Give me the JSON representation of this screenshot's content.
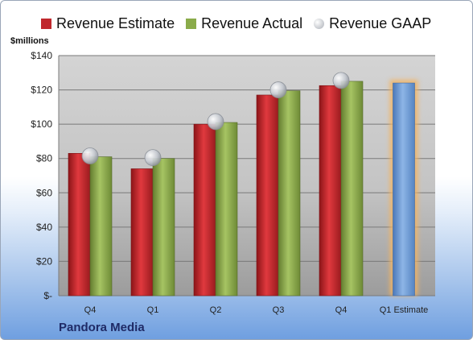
{
  "legend": {
    "estimate": "Revenue Estimate",
    "actual": "Revenue Actual",
    "gaap": "Revenue GAAP"
  },
  "y_unit_label": "$millions",
  "company": "Pandora Media",
  "colors": {
    "estimate": "#c0282d",
    "actual": "#8aab4a",
    "gaap": "#b9bec6",
    "forecast": "#6f9bd6",
    "forecast_glow": "#f4b460"
  },
  "chart_data": {
    "type": "bar",
    "categories": [
      "Q4",
      "Q1",
      "Q2",
      "Q3",
      "Q4",
      "Q1 Estimate"
    ],
    "series": [
      {
        "name": "Revenue Estimate",
        "values": [
          83,
          74,
          100,
          117,
          122.5,
          null
        ]
      },
      {
        "name": "Revenue Actual",
        "values": [
          81,
          80,
          101,
          119.5,
          125,
          124
        ]
      },
      {
        "name": "Revenue GAAP",
        "type": "scatter",
        "values": [
          81.5,
          80.5,
          101.5,
          120,
          125.5,
          null
        ]
      }
    ],
    "ylabel": "$millions",
    "ylim": [
      0,
      140
    ],
    "yticks": [
      0,
      20,
      40,
      60,
      80,
      100,
      120,
      140
    ],
    "ytick_labels": [
      "$-",
      "$20",
      "$40",
      "$60",
      "$80",
      "$100",
      "$120",
      "$140"
    ],
    "grid": true,
    "legend_position": "top"
  }
}
